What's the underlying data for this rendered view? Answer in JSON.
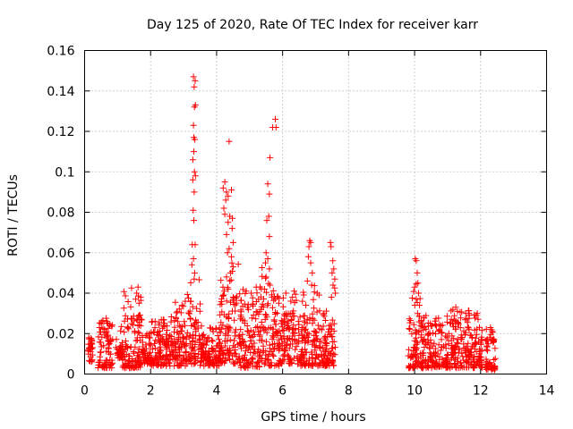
{
  "chart_data": {
    "type": "scatter",
    "title": "Day 125 of 2020, Rate Of TEC Index for receiver karr",
    "xlabel": "GPS time / hours",
    "ylabel": "ROTI / TECUs",
    "xlim": [
      0,
      14
    ],
    "ylim": [
      0,
      0.16
    ],
    "xticks": [
      "0",
      "2",
      "4",
      "6",
      "8",
      "10",
      "12",
      "14"
    ],
    "yticks": [
      "0",
      "0.02",
      "0.04",
      "0.06",
      "0.08",
      "0.1",
      "0.12",
      "0.14",
      "0.16"
    ],
    "grid": true,
    "marker": "+",
    "color": "#ff0000",
    "series": [
      {
        "name": "ROTI",
        "bands": [
          {
            "x0": 0.1,
            "x1": 0.25,
            "ymin": 0.006,
            "ymax": 0.017,
            "peak": 0.018
          },
          {
            "x0": 0.4,
            "x1": 0.85,
            "ymin": 0.003,
            "ymax": 0.025,
            "peak": 0.028
          },
          {
            "x0": 0.95,
            "x1": 1.15,
            "ymin": 0.008,
            "ymax": 0.014,
            "peak": 0.03
          },
          {
            "x0": 1.15,
            "x1": 1.75,
            "ymin": 0.003,
            "ymax": 0.03,
            "peak": 0.043
          },
          {
            "x0": 1.75,
            "x1": 2.0,
            "ymin": 0.005,
            "ymax": 0.018,
            "peak": 0.02
          },
          {
            "x0": 2.0,
            "x1": 2.6,
            "ymin": 0.004,
            "ymax": 0.025,
            "peak": 0.027
          },
          {
            "x0": 2.6,
            "x1": 3.1,
            "ymin": 0.004,
            "ymax": 0.028,
            "peak": 0.036
          },
          {
            "x0": 3.1,
            "x1": 3.5,
            "ymin": 0.005,
            "ymax": 0.035,
            "peak": 0.147
          },
          {
            "x0": 3.5,
            "x1": 4.1,
            "ymin": 0.004,
            "ymax": 0.02,
            "peak": 0.024
          },
          {
            "x0": 4.1,
            "x1": 4.7,
            "ymin": 0.005,
            "ymax": 0.04,
            "peak": 0.115
          },
          {
            "x0": 4.7,
            "x1": 5.3,
            "ymin": 0.003,
            "ymax": 0.035,
            "peak": 0.043
          },
          {
            "x0": 5.3,
            "x1": 5.9,
            "ymin": 0.004,
            "ymax": 0.04,
            "peak": 0.126
          },
          {
            "x0": 5.9,
            "x1": 6.5,
            "ymin": 0.005,
            "ymax": 0.03,
            "peak": 0.04
          },
          {
            "x0": 6.5,
            "x1": 7.0,
            "ymin": 0.004,
            "ymax": 0.03,
            "peak": 0.066
          },
          {
            "x0": 7.0,
            "x1": 7.6,
            "ymin": 0.004,
            "ymax": 0.028,
            "peak": 0.065
          },
          {
            "x0": 9.8,
            "x1": 10.2,
            "ymin": 0.003,
            "ymax": 0.03,
            "peak": 0.057
          },
          {
            "x0": 10.2,
            "x1": 11.0,
            "ymin": 0.003,
            "ymax": 0.025,
            "peak": 0.03
          },
          {
            "x0": 11.0,
            "x1": 11.7,
            "ymin": 0.003,
            "ymax": 0.028,
            "peak": 0.033
          },
          {
            "x0": 11.7,
            "x1": 12.05,
            "ymin": 0.003,
            "ymax": 0.022,
            "peak": 0.03
          },
          {
            "x0": 12.15,
            "x1": 12.45,
            "ymin": 0.002,
            "ymax": 0.018,
            "peak": 0.023
          }
        ],
        "spikes": [
          [
            3.3,
            0.147
          ],
          [
            3.35,
            0.145
          ],
          [
            3.32,
            0.142
          ],
          [
            3.36,
            0.133
          ],
          [
            3.33,
            0.132
          ],
          [
            3.3,
            0.123
          ],
          [
            3.31,
            0.117
          ],
          [
            3.34,
            0.116
          ],
          [
            3.31,
            0.11
          ],
          [
            3.28,
            0.106
          ],
          [
            3.33,
            0.1
          ],
          [
            3.36,
            0.098
          ],
          [
            3.28,
            0.096
          ],
          [
            3.32,
            0.09
          ],
          [
            3.29,
            0.081
          ],
          [
            3.31,
            0.076
          ],
          [
            3.26,
            0.064
          ],
          [
            3.35,
            0.064
          ],
          [
            3.3,
            0.057
          ],
          [
            3.25,
            0.054
          ],
          [
            3.32,
            0.047
          ],
          [
            3.22,
            0.036
          ],
          [
            4.38,
            0.115
          ],
          [
            4.25,
            0.095
          ],
          [
            4.2,
            0.092
          ],
          [
            4.3,
            0.09
          ],
          [
            4.45,
            0.091
          ],
          [
            4.35,
            0.088
          ],
          [
            4.28,
            0.086
          ],
          [
            4.22,
            0.082
          ],
          [
            4.25,
            0.079
          ],
          [
            4.4,
            0.078
          ],
          [
            4.48,
            0.077
          ],
          [
            4.35,
            0.075
          ],
          [
            4.47,
            0.072
          ],
          [
            4.3,
            0.069
          ],
          [
            4.5,
            0.065
          ],
          [
            4.38,
            0.062
          ],
          [
            4.33,
            0.06
          ],
          [
            4.45,
            0.058
          ],
          [
            4.5,
            0.053
          ],
          [
            4.42,
            0.05
          ],
          [
            4.3,
            0.048
          ],
          [
            4.4,
            0.046
          ],
          [
            4.35,
            0.042
          ],
          [
            5.78,
            0.126
          ],
          [
            5.7,
            0.122
          ],
          [
            5.8,
            0.122
          ],
          [
            5.62,
            0.107
          ],
          [
            5.55,
            0.094
          ],
          [
            5.6,
            0.089
          ],
          [
            5.52,
            0.076
          ],
          [
            5.58,
            0.078
          ],
          [
            5.6,
            0.068
          ],
          [
            5.5,
            0.06
          ],
          [
            5.55,
            0.057
          ],
          [
            5.48,
            0.055
          ],
          [
            5.6,
            0.052
          ],
          [
            5.5,
            0.048
          ],
          [
            5.62,
            0.044
          ],
          [
            5.45,
            0.042
          ],
          [
            6.82,
            0.066
          ],
          [
            6.85,
            0.065
          ],
          [
            6.8,
            0.063
          ],
          [
            6.78,
            0.058
          ],
          [
            6.85,
            0.055
          ],
          [
            6.9,
            0.05
          ],
          [
            6.75,
            0.046
          ],
          [
            6.88,
            0.044
          ],
          [
            7.45,
            0.065
          ],
          [
            7.47,
            0.063
          ],
          [
            7.52,
            0.056
          ],
          [
            7.55,
            0.052
          ],
          [
            7.5,
            0.05
          ],
          [
            7.58,
            0.047
          ],
          [
            7.53,
            0.044
          ],
          [
            7.6,
            0.04
          ],
          [
            7.48,
            0.038
          ],
          [
            10.02,
            0.057
          ],
          [
            10.05,
            0.056
          ],
          [
            10.08,
            0.05
          ],
          [
            10.1,
            0.045
          ],
          [
            10.0,
            0.043
          ],
          [
            10.12,
            0.04
          ],
          [
            10.05,
            0.037
          ],
          [
            10.15,
            0.034
          ],
          [
            1.62,
            0.043
          ],
          [
            1.58,
            0.04
          ],
          [
            1.7,
            0.038
          ],
          [
            1.55,
            0.037
          ],
          [
            1.65,
            0.035
          ],
          [
            3.05,
            0.036
          ],
          [
            2.95,
            0.034
          ],
          [
            5.2,
            0.043
          ],
          [
            5.05,
            0.04
          ],
          [
            4.9,
            0.041
          ],
          [
            6.1,
            0.04
          ],
          [
            6.3,
            0.038
          ],
          [
            6.35,
            0.041
          ],
          [
            6.6,
            0.036
          ],
          [
            7.05,
            0.04
          ],
          [
            11.25,
            0.033
          ],
          [
            11.3,
            0.031
          ],
          [
            11.55,
            0.03
          ],
          [
            11.9,
            0.03
          ],
          [
            12.3,
            0.023
          ],
          [
            12.35,
            0.021
          ]
        ]
      }
    ]
  }
}
